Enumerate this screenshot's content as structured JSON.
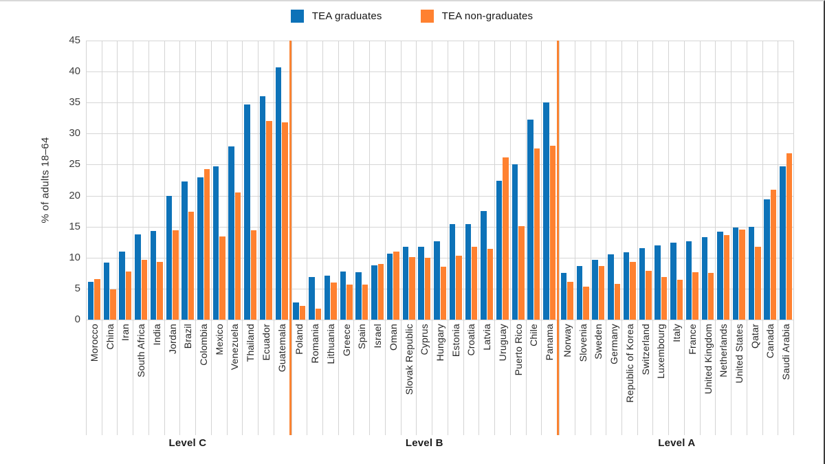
{
  "legend": {
    "items": [
      {
        "label": "TEA graduates",
        "color": "#0d72b8"
      },
      {
        "label": "TEA non-graduates",
        "color": "#ff8130"
      }
    ]
  },
  "colors": {
    "graduates": "#0d72b8",
    "non_graduates": "#ff8130",
    "group_separator": "#fb8331",
    "gridline": "#d6d6d6"
  },
  "chart_data": {
    "type": "bar",
    "title": "",
    "xlabel": "",
    "ylabel": "% of adults 18–64",
    "ylim": [
      0,
      45
    ],
    "ytick_step": 5,
    "grid": true,
    "legend_position": "top-center",
    "series": [
      {
        "name": "TEA graduates",
        "color": "#0d72b8",
        "key": "graduates"
      },
      {
        "name": "TEA non-graduates",
        "color": "#ff8130",
        "key": "non_graduates"
      }
    ],
    "groups": [
      {
        "label": "Level C",
        "countries": [
          {
            "name": "Morocco",
            "graduates": 6.1,
            "non_graduates": 6.5
          },
          {
            "name": "China",
            "graduates": 9.2,
            "non_graduates": 4.9
          },
          {
            "name": "Iran",
            "graduates": 11.0,
            "non_graduates": 7.8
          },
          {
            "name": "South Africa",
            "graduates": 13.7,
            "non_graduates": 9.6
          },
          {
            "name": "India",
            "graduates": 14.3,
            "non_graduates": 9.3
          },
          {
            "name": "Jordan",
            "graduates": 19.9,
            "non_graduates": 14.4
          },
          {
            "name": "Brazil",
            "graduates": 22.3,
            "non_graduates": 17.4
          },
          {
            "name": "Colombia",
            "graduates": 23.0,
            "non_graduates": 24.3
          },
          {
            "name": "Mexico",
            "graduates": 24.7,
            "non_graduates": 13.4
          },
          {
            "name": "Venezuela",
            "graduates": 27.9,
            "non_graduates": 20.5
          },
          {
            "name": "Thailand",
            "graduates": 34.7,
            "non_graduates": 14.4
          },
          {
            "name": "Ecuador",
            "graduates": 36.0,
            "non_graduates": 32.0
          },
          {
            "name": "Guatemala",
            "graduates": 40.7,
            "non_graduates": 31.8
          }
        ]
      },
      {
        "label": "Level B",
        "countries": [
          {
            "name": "Poland",
            "graduates": 2.8,
            "non_graduates": 2.2
          },
          {
            "name": "Romania",
            "graduates": 6.9,
            "non_graduates": 1.8
          },
          {
            "name": "Lithuania",
            "graduates": 7.1,
            "non_graduates": 6.0
          },
          {
            "name": "Greece",
            "graduates": 7.8,
            "non_graduates": 5.6
          },
          {
            "name": "Spain",
            "graduates": 7.7,
            "non_graduates": 5.7
          },
          {
            "name": "Israel",
            "graduates": 8.8,
            "non_graduates": 9.0
          },
          {
            "name": "Oman",
            "graduates": 10.6,
            "non_graduates": 11.0
          },
          {
            "name": "Slovak Republic",
            "graduates": 11.8,
            "non_graduates": 10.1
          },
          {
            "name": "Cyprus",
            "graduates": 11.7,
            "non_graduates": 10.0
          },
          {
            "name": "Hungary",
            "graduates": 12.6,
            "non_graduates": 8.5
          },
          {
            "name": "Estonia",
            "graduates": 15.4,
            "non_graduates": 10.3
          },
          {
            "name": "Croatia",
            "graduates": 15.4,
            "non_graduates": 11.7
          },
          {
            "name": "Latvia",
            "graduates": 17.5,
            "non_graduates": 11.4
          },
          {
            "name": "Uruguay",
            "graduates": 22.4,
            "non_graduates": 26.2
          },
          {
            "name": "Puerto Rico",
            "graduates": 25.0,
            "non_graduates": 15.1
          },
          {
            "name": "Chile",
            "graduates": 32.3,
            "non_graduates": 27.6
          },
          {
            "name": "Panama",
            "graduates": 35.0,
            "non_graduates": 28.0
          }
        ]
      },
      {
        "label": "Level A",
        "countries": [
          {
            "name": "Norway",
            "graduates": 7.5,
            "non_graduates": 6.1
          },
          {
            "name": "Slovenia",
            "graduates": 8.7,
            "non_graduates": 5.3
          },
          {
            "name": "Sweden",
            "graduates": 9.6,
            "non_graduates": 8.7
          },
          {
            "name": "Germany",
            "graduates": 10.5,
            "non_graduates": 5.8
          },
          {
            "name": "Republic of Korea",
            "graduates": 10.9,
            "non_graduates": 9.3
          },
          {
            "name": "Switzerland",
            "graduates": 11.5,
            "non_graduates": 7.9
          },
          {
            "name": "Luxembourg",
            "graduates": 12.0,
            "non_graduates": 6.9
          },
          {
            "name": "Italy",
            "graduates": 12.4,
            "non_graduates": 6.4
          },
          {
            "name": "France",
            "graduates": 12.6,
            "non_graduates": 7.6
          },
          {
            "name": "United Kingdom",
            "graduates": 13.3,
            "non_graduates": 7.5
          },
          {
            "name": "Netherlands",
            "graduates": 14.2,
            "non_graduates": 13.6
          },
          {
            "name": "United States",
            "graduates": 14.8,
            "non_graduates": 14.5
          },
          {
            "name": "Qatar",
            "graduates": 15.0,
            "non_graduates": 11.8
          },
          {
            "name": "Canada",
            "graduates": 19.4,
            "non_graduates": 21.0
          },
          {
            "name": "Saudi Arabia",
            "graduates": 24.7,
            "non_graduates": 26.8
          }
        ]
      }
    ]
  }
}
